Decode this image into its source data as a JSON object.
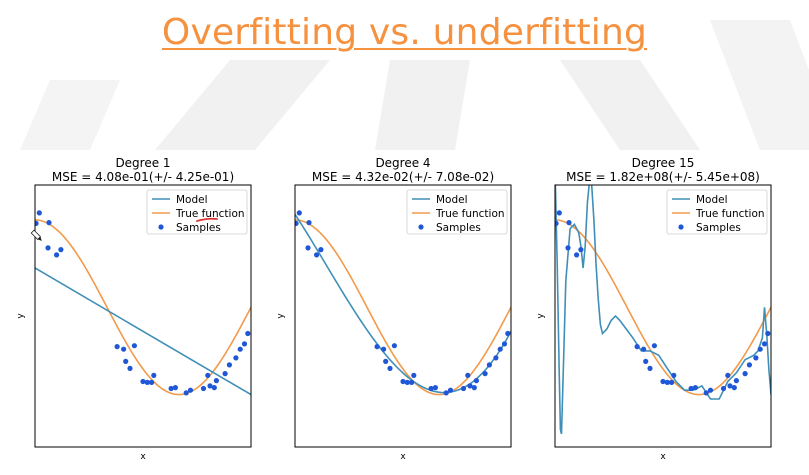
{
  "title": "Overfitting vs. underfitting",
  "colors": {
    "title": "#f5913f",
    "model": "#3f8fb8",
    "true_function": "#f39a4a",
    "samples": "#1f57d6",
    "annotation": "#e03030"
  },
  "legend": {
    "model": "Model",
    "true_function": "True function",
    "samples": "Samples"
  },
  "chart_data": [
    {
      "type": "line",
      "title": "Degree 1",
      "subtitle": "MSE = 4.08e-01(+/- 4.25e-01)",
      "xlabel": "x",
      "ylabel": "y",
      "xlim": [
        0,
        1
      ],
      "ylim": [
        -1.6,
        1.4
      ],
      "legend_position": "top-right",
      "true_function": "cos(1.5*pi*x)",
      "model": {
        "kind": "line",
        "x": [
          0,
          1
        ],
        "y": [
          0.45,
          -1.0
        ]
      },
      "samples": {
        "x": [
          0.005,
          0.02,
          0.06,
          0.065,
          0.1,
          0.12,
          0.38,
          0.41,
          0.42,
          0.44,
          0.46,
          0.5,
          0.52,
          0.54,
          0.55,
          0.63,
          0.65,
          0.7,
          0.72,
          0.78,
          0.8,
          0.81,
          0.83,
          0.84,
          0.88,
          0.9,
          0.93,
          0.95,
          0.97,
          0.985
        ],
        "y": [
          0.96,
          1.08,
          0.68,
          0.97,
          0.6,
          0.66,
          -0.45,
          -0.48,
          -0.62,
          -0.7,
          -0.44,
          -0.85,
          -0.86,
          -0.86,
          -0.78,
          -0.93,
          -0.92,
          -0.98,
          -0.95,
          -0.93,
          -0.78,
          -0.9,
          -0.92,
          -0.84,
          -0.76,
          -0.66,
          -0.58,
          -0.48,
          -0.42,
          -0.3
        ]
      }
    },
    {
      "type": "line",
      "title": "Degree 4",
      "subtitle": "MSE = 4.32e-02(+/- 7.08e-02)",
      "xlabel": "x",
      "ylabel": "y",
      "xlim": [
        0,
        1
      ],
      "ylim": [
        -1.6,
        1.4
      ],
      "legend_position": "top-right",
      "true_function": "cos(1.5*pi*x)",
      "model": {
        "kind": "poly4_fit"
      },
      "samples": {
        "x": [
          0.005,
          0.02,
          0.06,
          0.065,
          0.1,
          0.12,
          0.38,
          0.41,
          0.42,
          0.44,
          0.46,
          0.5,
          0.52,
          0.54,
          0.55,
          0.63,
          0.65,
          0.7,
          0.72,
          0.78,
          0.8,
          0.81,
          0.83,
          0.84,
          0.88,
          0.9,
          0.93,
          0.95,
          0.97,
          0.985
        ],
        "y": [
          0.96,
          1.08,
          0.68,
          0.97,
          0.6,
          0.66,
          -0.45,
          -0.48,
          -0.62,
          -0.7,
          -0.44,
          -0.85,
          -0.86,
          -0.86,
          -0.78,
          -0.93,
          -0.92,
          -0.98,
          -0.95,
          -0.93,
          -0.78,
          -0.9,
          -0.92,
          -0.84,
          -0.76,
          -0.66,
          -0.58,
          -0.48,
          -0.42,
          -0.3
        ]
      }
    },
    {
      "type": "line",
      "title": "Degree 15",
      "subtitle": "MSE = 1.82e+08(+/- 5.45e+08)",
      "xlabel": "x",
      "ylabel": "y",
      "xlim": [
        0,
        1
      ],
      "ylim": [
        -1.6,
        1.4
      ],
      "legend_position": "top-right",
      "true_function": "cos(1.5*pi*x)",
      "model": {
        "kind": "curve",
        "x": [
          0,
          0.01,
          0.02,
          0.025,
          0.03,
          0.04,
          0.05,
          0.07,
          0.09,
          0.11,
          0.12,
          0.13,
          0.14,
          0.15,
          0.16,
          0.17,
          0.18,
          0.19,
          0.2,
          0.21,
          0.22,
          0.24,
          0.26,
          0.28,
          0.3,
          0.33,
          0.36,
          0.4,
          0.44,
          0.48,
          0.52,
          0.56,
          0.6,
          0.64,
          0.68,
          0.72,
          0.76,
          0.8,
          0.84,
          0.88,
          0.92,
          0.94,
          0.96,
          0.97,
          0.98,
          0.99,
          1.0
        ],
        "y": [
          1.6,
          0.5,
          -0.8,
          -1.4,
          -1.45,
          -0.6,
          0.3,
          0.9,
          0.95,
          0.85,
          0.7,
          0.45,
          0.7,
          1.2,
          1.45,
          1.4,
          1.0,
          0.5,
          0.1,
          -0.2,
          -0.3,
          -0.25,
          -0.15,
          -0.1,
          -0.15,
          -0.25,
          -0.35,
          -0.5,
          -0.5,
          -0.55,
          -0.7,
          -0.85,
          -0.95,
          -0.95,
          -0.9,
          -1.05,
          -1.05,
          -0.85,
          -0.75,
          -0.6,
          -0.55,
          -0.5,
          -0.35,
          0.0,
          -0.3,
          -0.7,
          -1.0
        ]
      },
      "samples": {
        "x": [
          0.005,
          0.02,
          0.06,
          0.065,
          0.1,
          0.12,
          0.38,
          0.41,
          0.42,
          0.44,
          0.46,
          0.5,
          0.52,
          0.54,
          0.55,
          0.63,
          0.65,
          0.7,
          0.72,
          0.78,
          0.8,
          0.81,
          0.83,
          0.84,
          0.88,
          0.9,
          0.93,
          0.95,
          0.97,
          0.985
        ],
        "y": [
          0.96,
          1.08,
          0.68,
          0.97,
          0.6,
          0.66,
          -0.45,
          -0.48,
          -0.62,
          -0.7,
          -0.44,
          -0.85,
          -0.86,
          -0.86,
          -0.78,
          -0.93,
          -0.92,
          -0.98,
          -0.95,
          -0.93,
          -0.78,
          -0.9,
          -0.92,
          -0.84,
          -0.76,
          -0.66,
          -0.58,
          -0.48,
          -0.42,
          -0.3
        ]
      }
    }
  ]
}
